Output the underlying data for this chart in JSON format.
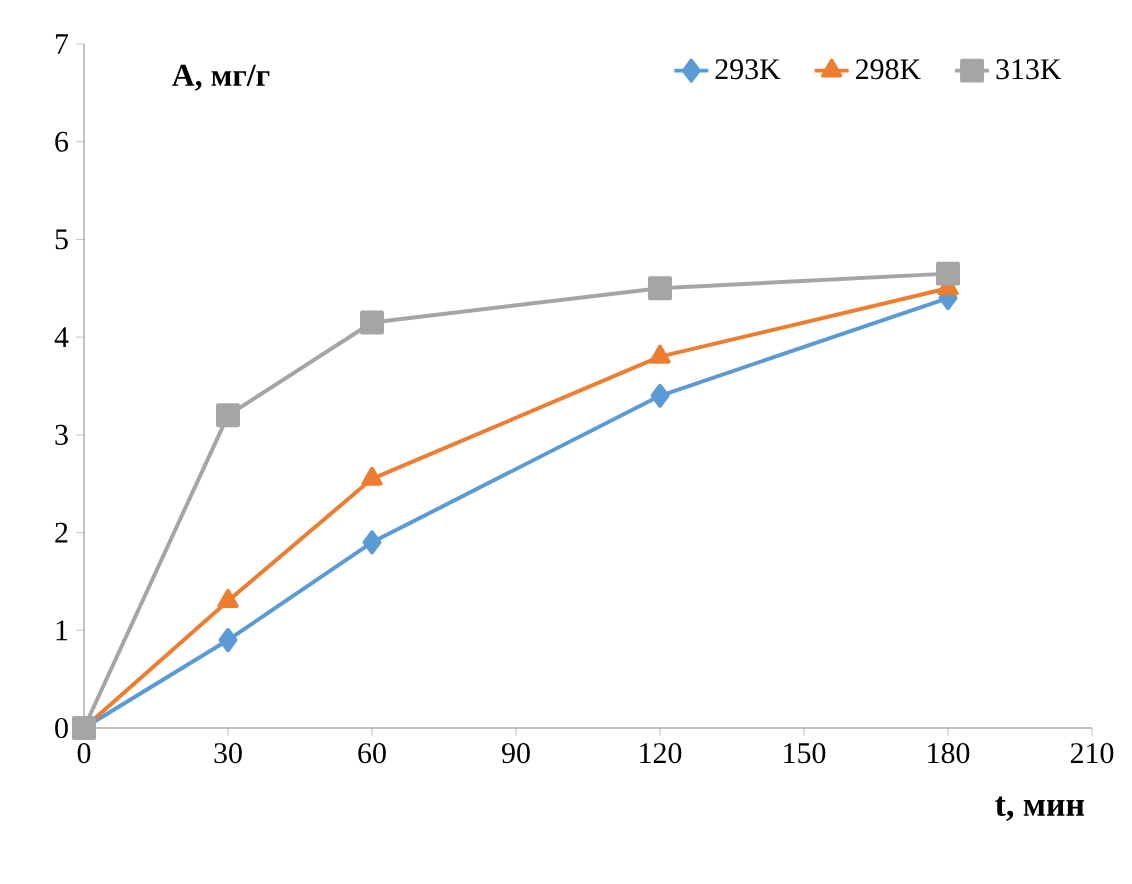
{
  "chart_data": {
    "type": "line",
    "xlabel": "t, мин",
    "ylabel": "A, мг/г",
    "x": [
      0,
      30,
      60,
      120,
      180
    ],
    "series": [
      {
        "name": "293K",
        "color": "#5b9bd5",
        "marker": "diamond",
        "values": [
          0,
          0.9,
          1.9,
          3.4,
          4.4
        ]
      },
      {
        "name": "298K",
        "color": "#ed7d31",
        "marker": "triangle",
        "values": [
          0,
          1.3,
          2.55,
          3.8,
          4.5
        ]
      },
      {
        "name": "313K",
        "color": "#a5a5a5",
        "marker": "square",
        "values": [
          0,
          3.2,
          4.15,
          4.5,
          4.65
        ]
      }
    ],
    "xlim": [
      0,
      210
    ],
    "xticks": [
      0,
      30,
      60,
      90,
      120,
      150,
      180,
      210
    ],
    "ylim": [
      0,
      7
    ],
    "yticks": [
      0,
      1,
      2,
      3,
      4,
      5,
      6,
      7
    ],
    "grid": false,
    "legend": "top right",
    "line_style": "solid"
  }
}
